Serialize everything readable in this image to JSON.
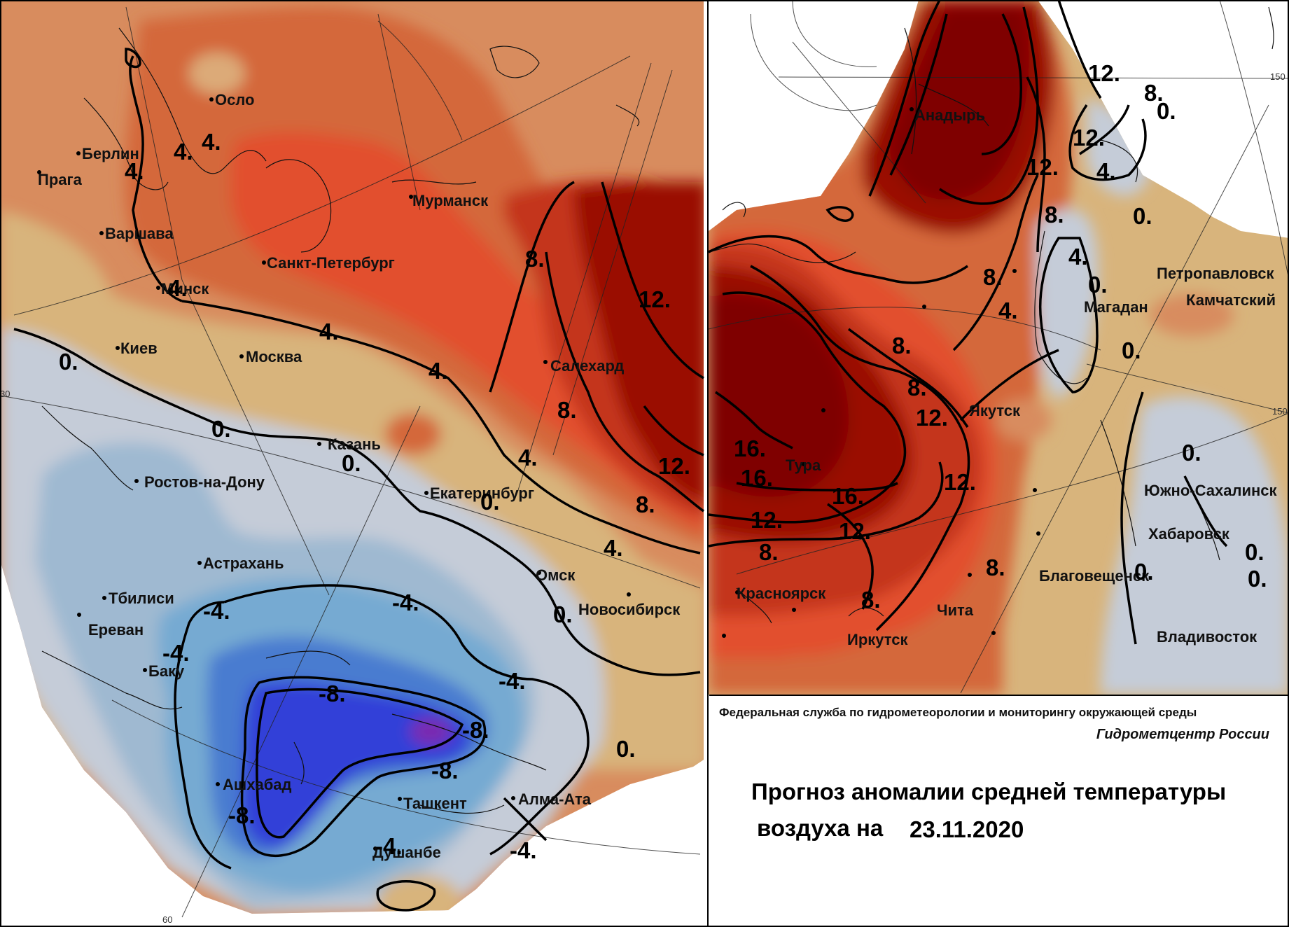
{
  "colors": {
    "anomaly_plus16": "#7f0000",
    "anomaly_plus12": "#9a0e05",
    "anomaly_plus8": "#c4351c",
    "anomaly_plus6": "#e24f2f",
    "anomaly_plus4": "#d4683a",
    "anomaly_plus2": "#d88c5e",
    "anomaly_plus1": "#dcaa78",
    "anomaly_zero": "#d8b47c",
    "anomaly_minus1": "#c5ccd8",
    "anomaly_minus2": "#9fb9d1",
    "anomaly_minus4": "#76aad2",
    "anomaly_minus6": "#4a7bd0",
    "anomaly_minus8": "#3240d8",
    "anomaly_minus10": "#7a2ab0",
    "isoline": "#000000"
  },
  "left_map": {
    "cities": [
      "Осло",
      "Берлин",
      "Прага",
      "Варшава",
      "Минск",
      "Киев",
      "Москва",
      "Санкт-Петербург",
      "Мурманск",
      "Салехард",
      "Казань",
      "Ростов-на-Дону",
      "Екатеринбург",
      "Омск",
      "Новосибирск",
      "Астрахань",
      "Тбилиси",
      "Ереван",
      "Баку",
      "Ашхабад",
      "Ташкент",
      "Алма-Ата",
      "Душанбе"
    ],
    "isoline_labels": [
      "4.",
      "4.",
      "4.",
      "4.",
      "4.",
      "4.",
      "4.",
      "0.",
      "0.",
      "0.",
      "0.",
      "0.",
      "0.",
      "8.",
      "8.",
      "8.",
      "12.",
      "12.",
      "4.",
      "-4.",
      "-4.",
      "-4.",
      "-4.",
      "-8.",
      "-8.",
      "-8.",
      "-8.",
      "-4.",
      "-4."
    ],
    "grid_labels": [
      "30",
      "60"
    ]
  },
  "right_map": {
    "cities": [
      "Анадырь",
      "Петропавловск",
      "Камчатский",
      "Магадан",
      "Якутск",
      "Тура",
      "Южно-Сахалинск",
      "Хабаровск",
      "Благовещенск",
      "Красноярск",
      "Чита",
      "Иркутск",
      "Владивосток"
    ],
    "isoline_labels": [
      "12.",
      "8.",
      "0.",
      "12.",
      "12.",
      "4.",
      "8.",
      "0.",
      "4.",
      "8.",
      "0.",
      "4.",
      "0.",
      "8.",
      "8.",
      "12.",
      "16.",
      "16.",
      "16.",
      "12.",
      "12.",
      "12.",
      "8.",
      "8.",
      "8.",
      "0.",
      "0.",
      "0.",
      "0."
    ],
    "grid_labels": [
      "150",
      "150"
    ]
  },
  "info": {
    "agency": "Федеральная служба по гидрометеорологии и мониторингу окружающей среды",
    "center": "Гидрометцентр России",
    "title_line1": "Прогноз аномалии средней температуры",
    "title_line2": "воздуха на",
    "date": "23.11.2020"
  }
}
